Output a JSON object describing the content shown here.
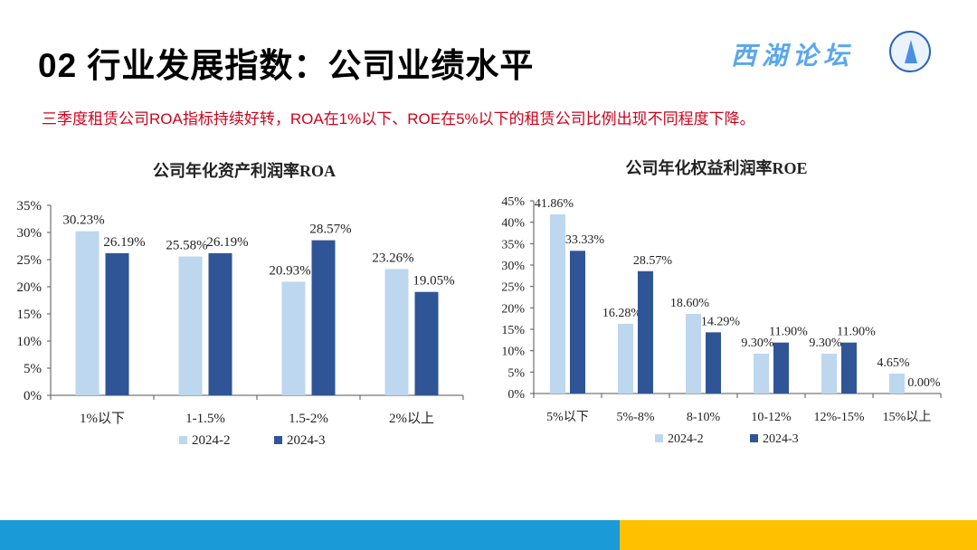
{
  "header": {
    "title": "02 行业发展指数：公司业绩水平",
    "subtitle": "三季度租赁公司ROA指标持续好转，ROA在1%以下、ROE在5%以下的租赁公司比例出现不同程度下降。",
    "brand": "西湖论坛"
  },
  "colors": {
    "light": "#bdd7ee",
    "dark": "#2f5597",
    "footer_blue": "#1a9ad6",
    "footer_yellow": "#ffc000",
    "subtitle": "#d0021b"
  },
  "chart_data": [
    {
      "type": "bar",
      "title": "公司年化资产利润率ROA",
      "categories": [
        "1%以下",
        "1-1.5%",
        "1.5-2%",
        "2%以上"
      ],
      "series": [
        {
          "name": "2024-2",
          "values": [
            30.23,
            25.58,
            20.93,
            23.26
          ]
        },
        {
          "name": "2024-3",
          "values": [
            26.19,
            26.19,
            28.57,
            19.05
          ]
        }
      ],
      "ylim": [
        0,
        35
      ],
      "yticks": [
        "0%",
        "5%",
        "10%",
        "15%",
        "20%",
        "25%",
        "30%",
        "35%"
      ],
      "legend": "bottom",
      "grid": false
    },
    {
      "type": "bar",
      "title": "公司年化权益利润率ROE",
      "categories": [
        "5%以下",
        "5%-8%",
        "8-10%",
        "10-12%",
        "12%-15%",
        "15%以上"
      ],
      "series": [
        {
          "name": "2024-2",
          "values": [
            41.86,
            16.28,
            18.6,
            9.3,
            9.3,
            4.65
          ]
        },
        {
          "name": "2024-3",
          "values": [
            33.33,
            28.57,
            14.29,
            11.9,
            11.9,
            0.0
          ]
        }
      ],
      "ylim": [
        0,
        45
      ],
      "yticks": [
        "0%",
        "5%",
        "10%",
        "15%",
        "20%",
        "25%",
        "30%",
        "35%",
        "40%",
        "45%"
      ],
      "legend": "bottom",
      "grid": false
    }
  ]
}
